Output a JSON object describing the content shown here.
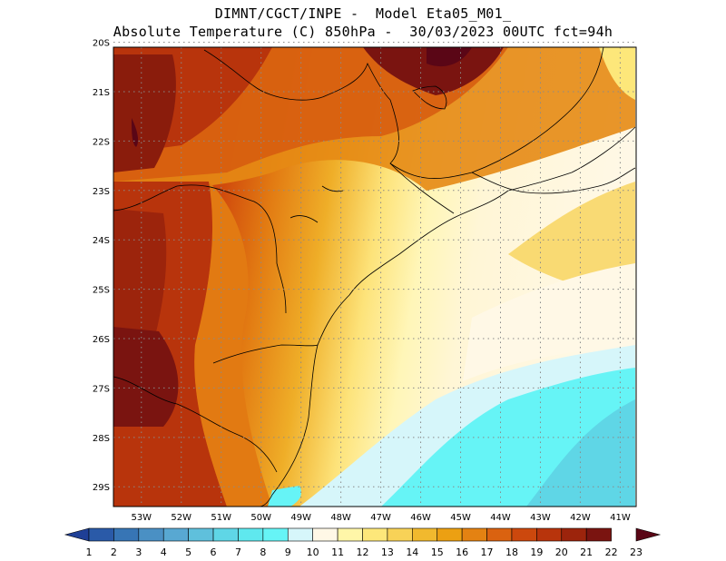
{
  "header": {
    "line1": "DIMNT/CGCT/INPE -  Model Eta05_M01_",
    "line2": "Absolute Temperature (C) 850hPa -  30/03/2023 00UTC fct=94h"
  },
  "map": {
    "lon_range": [
      -53.7,
      -40.6
    ],
    "lat_range": [
      -29.4,
      -20.1
    ],
    "lat_labels": [
      "20S",
      "21S",
      "22S",
      "23S",
      "24S",
      "25S",
      "26S",
      "27S",
      "28S",
      "29S"
    ],
    "lat_values": [
      -20,
      -21,
      -22,
      -23,
      -24,
      -25,
      -26,
      -27,
      -28,
      -29
    ],
    "lon_labels": [
      "53W",
      "52W",
      "51W",
      "50W",
      "49W",
      "48W",
      "47W",
      "46W",
      "45W",
      "44W",
      "43W",
      "42W",
      "41W"
    ],
    "lon_values": [
      -53,
      -52,
      -51,
      -50,
      -49,
      -48,
      -47,
      -46,
      -45,
      -44,
      -43,
      -42,
      -41
    ],
    "grid": "dotted"
  },
  "colorbar": {
    "labels": [
      "1",
      "2",
      "3",
      "4",
      "5",
      "6",
      "7",
      "8",
      "9",
      "10",
      "11",
      "12",
      "13",
      "14",
      "15",
      "16",
      "17",
      "18",
      "19",
      "20",
      "21",
      "22",
      "23"
    ],
    "colors": [
      "#1f3f96",
      "#2a5aa8",
      "#3775b5",
      "#4a90c4",
      "#58a8d2",
      "#5fc0dc",
      "#5fd6e6",
      "#5fe8ee",
      "#66f4f6",
      "#d6f6fa",
      "#fff8e6",
      "#fff6a8",
      "#fde77a",
      "#f8d257",
      "#f1b92e",
      "#eca012",
      "#e48212",
      "#da6210",
      "#cc480d",
      "#b8340c",
      "#9c240c",
      "#7a1410",
      "#5a0616"
    ]
  }
}
